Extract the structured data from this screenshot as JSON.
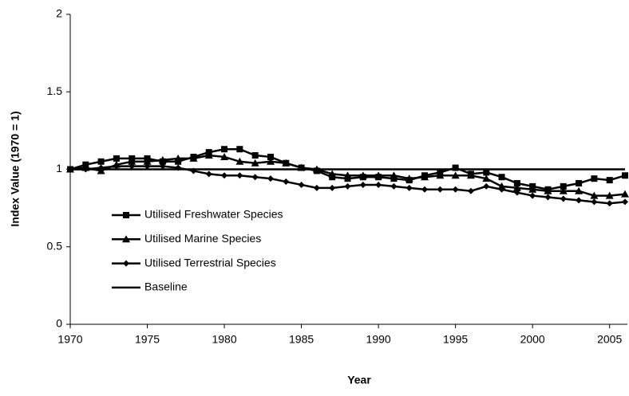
{
  "chart_data": {
    "type": "line",
    "xlabel": "Year",
    "ylabel": "Index Value (1970 = 1)",
    "x": [
      1970,
      1971,
      1972,
      1973,
      1974,
      1975,
      1976,
      1977,
      1978,
      1979,
      1980,
      1981,
      1982,
      1983,
      1984,
      1985,
      1986,
      1987,
      1988,
      1989,
      1990,
      1991,
      1992,
      1993,
      1994,
      1995,
      1996,
      1997,
      1998,
      1999,
      2000,
      2001,
      2002,
      2003,
      2004,
      2005,
      2006
    ],
    "series": [
      {
        "name": "Utilised Freshwater Species",
        "color": "#000000",
        "marker": "square",
        "values": [
          1.0,
          1.03,
          1.05,
          1.07,
          1.07,
          1.07,
          1.05,
          1.05,
          1.08,
          1.11,
          1.13,
          1.13,
          1.09,
          1.08,
          1.04,
          1.01,
          0.99,
          0.95,
          0.94,
          0.95,
          0.95,
          0.94,
          0.93,
          0.96,
          0.98,
          1.01,
          0.97,
          0.98,
          0.95,
          0.91,
          0.89,
          0.87,
          0.89,
          0.91,
          0.94,
          0.93,
          0.96
        ]
      },
      {
        "name": "Utilised Marine Species",
        "color": "#000000",
        "marker": "triangle",
        "values": [
          1.0,
          1.01,
          0.99,
          1.03,
          1.05,
          1.05,
          1.06,
          1.07,
          1.07,
          1.09,
          1.08,
          1.05,
          1.04,
          1.05,
          1.04,
          1.01,
          1.0,
          0.97,
          0.96,
          0.96,
          0.96,
          0.96,
          0.94,
          0.95,
          0.96,
          0.96,
          0.96,
          0.94,
          0.89,
          0.88,
          0.87,
          0.86,
          0.86,
          0.86,
          0.83,
          0.83,
          0.84
        ]
      },
      {
        "name": "Utilised Terrestrial Species",
        "color": "#000000",
        "marker": "diamond",
        "values": [
          1.0,
          1.0,
          1.01,
          1.02,
          1.02,
          1.02,
          1.02,
          1.01,
          0.99,
          0.97,
          0.96,
          0.96,
          0.95,
          0.94,
          0.92,
          0.9,
          0.88,
          0.88,
          0.89,
          0.9,
          0.9,
          0.89,
          0.88,
          0.87,
          0.87,
          0.87,
          0.86,
          0.89,
          0.87,
          0.85,
          0.83,
          0.82,
          0.81,
          0.8,
          0.79,
          0.78,
          0.79
        ]
      },
      {
        "name": "Baseline",
        "color": "#000000",
        "marker": "none",
        "values": [
          1,
          1,
          1,
          1,
          1,
          1,
          1,
          1,
          1,
          1,
          1,
          1,
          1,
          1,
          1,
          1,
          1,
          1,
          1,
          1,
          1,
          1,
          1,
          1,
          1,
          1,
          1,
          1,
          1,
          1,
          1,
          1,
          1,
          1,
          1,
          1,
          1
        ]
      }
    ],
    "xlim": [
      1970,
      2006
    ],
    "xticks": [
      1970,
      1975,
      1980,
      1985,
      1990,
      1995,
      2000,
      2005
    ],
    "ylim": [
      0,
      2
    ],
    "yticks": [
      0,
      0.5,
      1,
      1.5,
      2
    ],
    "grid": false,
    "legend": "left"
  }
}
